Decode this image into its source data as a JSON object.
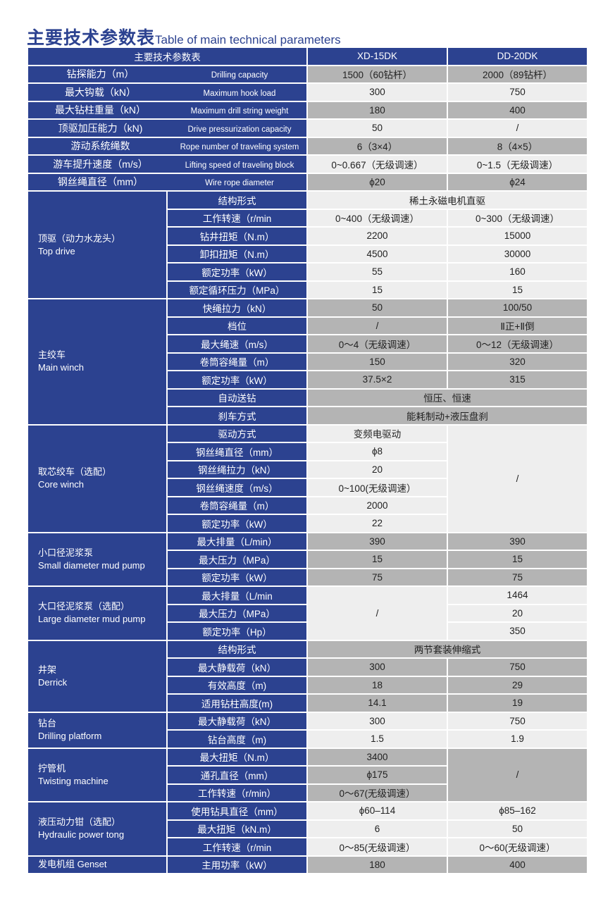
{
  "title_cn": "主要技术参数表",
  "title_en": "Table of main technical parameters",
  "colors": {
    "navy": "#2c4290",
    "gray": "#b4b4b4",
    "light": "#eeeeee"
  },
  "header": {
    "label": "主要技术参数表",
    "models": [
      "XD-15DK",
      "DD-20DK"
    ]
  },
  "simple_rows": [
    {
      "cn": "钻探能力（m）",
      "en": "Drilling capacity",
      "values": [
        "1500（60钻杆）",
        "2000（89钻杆）"
      ],
      "shade": "gray"
    },
    {
      "cn": "最大钩载（kN）",
      "en": "Maximum hook load",
      "values": [
        "300",
        "750"
      ],
      "shade": "light"
    },
    {
      "cn": "最大钻柱重量（kN）",
      "en": "Maximum drill string weight",
      "values": [
        "180",
        "400"
      ],
      "shade": "gray"
    },
    {
      "cn": "顶驱加压能力（kN)",
      "en": "Drive pressurization capacity",
      "values": [
        "50",
        "/"
      ],
      "shade": "light"
    },
    {
      "cn": "游动系统绳数",
      "en": "Rope number of traveling system",
      "values": [
        "6（3×4）",
        "8（4×5）"
      ],
      "shade": "gray"
    },
    {
      "cn": "游车提升速度（m/s）",
      "en": "Lifting speed of traveling block",
      "values": [
        "0~0.667（无级调速）",
        "0~1.5（无级调速）"
      ],
      "shade": "light"
    },
    {
      "cn": "钢丝绳直径（mm）",
      "en": "Wire rope diameter",
      "values": [
        "ϕ20",
        "ϕ24"
      ],
      "shade": "gray"
    }
  ],
  "groups": [
    {
      "cn": "顶驱（动力水龙头）",
      "en": "Top drive",
      "shade": "light",
      "rows": [
        {
          "label": "结构形式",
          "span": "稀土永磁电机直驱"
        },
        {
          "label": "工作转速（r/min",
          "values": [
            "0~400（无级调速）",
            "0~300（无级调速）"
          ]
        },
        {
          "label": "钻井扭矩（N.m）",
          "values": [
            "2200",
            "15000"
          ]
        },
        {
          "label": "卸扣扭矩（N.m）",
          "values": [
            "4500",
            "30000"
          ]
        },
        {
          "label": "额定功率（kW）",
          "values": [
            "55",
            "160"
          ]
        },
        {
          "label": "额定循环压力（MPa）",
          "values": [
            "15",
            "15"
          ]
        }
      ]
    },
    {
      "cn": "主绞车",
      "en": "Main winch",
      "shade": "gray",
      "rows": [
        {
          "label": "快绳拉力（kN）",
          "values": [
            "50",
            "100/50"
          ]
        },
        {
          "label": "档位",
          "values": [
            "/",
            "Ⅱ正+Ⅱ倒"
          ]
        },
        {
          "label": "最大绳速（m/s）",
          "values": [
            "0～4（无级调速）",
            "0～12（无级调速）"
          ]
        },
        {
          "label": "卷筒容绳量（m）",
          "values": [
            "150",
            "320"
          ]
        },
        {
          "label": "额定功率（kW）",
          "values": [
            "37.5×2",
            "315"
          ]
        },
        {
          "label": "自动送钻",
          "span": "恒压、恒速"
        },
        {
          "label": "刹车方式",
          "span": "能耗制动+液压盘刹"
        }
      ]
    },
    {
      "cn": "取芯绞车（选配）",
      "en": "Core winch",
      "shade": "light",
      "merged_col": 2,
      "merged_value": "/",
      "rows": [
        {
          "label": "驱动方式",
          "values": [
            "变频电驱动"
          ]
        },
        {
          "label": "钢丝绳直径（mm）",
          "values": [
            "ϕ8"
          ]
        },
        {
          "label": "钢丝绳拉力（kN）",
          "values": [
            "20"
          ]
        },
        {
          "label": "钢丝绳速度（m/s）",
          "values": [
            "0~100(无级调速）"
          ]
        },
        {
          "label": "卷筒容绳量（m）",
          "values": [
            "2000"
          ]
        },
        {
          "label": "额定功率（kW）",
          "values": [
            "22"
          ]
        }
      ]
    },
    {
      "cn": "小口径泥浆泵",
      "en": "Small diameter mud pump",
      "shade": "gray",
      "rows": [
        {
          "label": "最大排量（L/min）",
          "values": [
            "390",
            "390"
          ]
        },
        {
          "label": "最大压力（MPa）",
          "values": [
            "15",
            "15"
          ]
        },
        {
          "label": "额定功率（kW）",
          "values": [
            "75",
            "75"
          ]
        }
      ]
    },
    {
      "cn": "大口径泥浆泵（选配）",
      "en": "Large diameter mud pump",
      "shade": "light",
      "merged_col": 1,
      "merged_value": "/",
      "rows": [
        {
          "label": "最大排量（L/min",
          "values": [
            "1464"
          ]
        },
        {
          "label": "最大压力（MPa）",
          "values": [
            "20"
          ]
        },
        {
          "label": "额定功率（Hp）",
          "values": [
            "350"
          ]
        }
      ]
    },
    {
      "cn": "井架",
      "en": "Derrick",
      "shade": "gray",
      "rows": [
        {
          "label": "结构形式",
          "span": "两节套装伸缩式"
        },
        {
          "label": "最大静载荷（kN）",
          "values": [
            "300",
            "750"
          ]
        },
        {
          "label": "有效高度（m)",
          "values": [
            "18",
            "29"
          ]
        },
        {
          "label": "适用钻柱高度(m)",
          "values": [
            "14.1",
            "19"
          ]
        }
      ]
    },
    {
      "cn": "钻台",
      "en": "Drilling platform",
      "shade": "light",
      "rows": [
        {
          "label": "最大静载荷（kN）",
          "values": [
            "300",
            "750"
          ]
        },
        {
          "label": "钻台高度（m)",
          "values": [
            "1.5",
            "1.9"
          ]
        }
      ]
    },
    {
      "cn": "拧管机",
      "en": "Twisting machine",
      "shade": "gray",
      "merged_col": 2,
      "merged_value": "/",
      "rows": [
        {
          "label": "最大扭矩（N.m）",
          "values": [
            "3400"
          ]
        },
        {
          "label": "通孔直径（mm）",
          "values": [
            "ϕ175"
          ]
        },
        {
          "label": "工作转速（r/min）",
          "values": [
            "0～67(无级调速）"
          ]
        }
      ]
    },
    {
      "cn": "液压动力钳（选配）",
      "en": "Hydraulic power tong",
      "shade": "light",
      "rows": [
        {
          "label": "使用钻具直径（mm）",
          "values": [
            "ϕ60–114",
            "ϕ85–162"
          ]
        },
        {
          "label": "最大扭矩（kN.m）",
          "values": [
            "6",
            "50"
          ]
        },
        {
          "label": "工作转速（r/min",
          "values": [
            "0～85(无级调速）",
            "0～60(无级调速）"
          ]
        }
      ]
    },
    {
      "cn": "发电机组 Genset",
      "en": "",
      "shade": "gray",
      "rows": [
        {
          "label": "主用功率（kW）",
          "values": [
            "180",
            "400"
          ]
        }
      ]
    }
  ]
}
